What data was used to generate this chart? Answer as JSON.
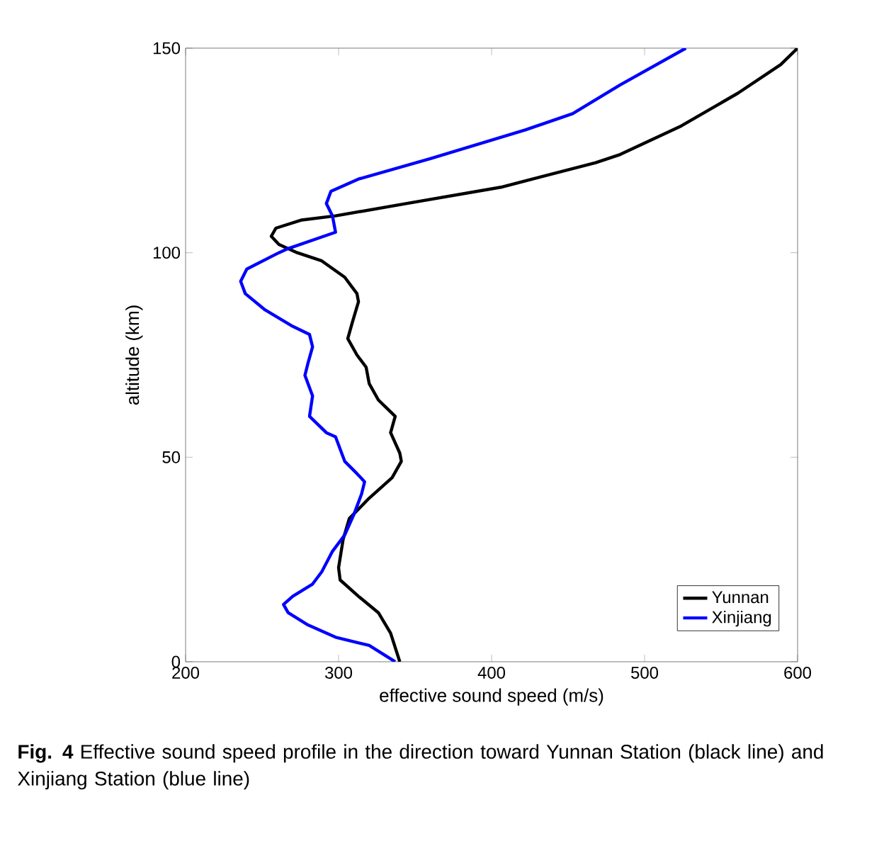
{
  "chart_data": {
    "type": "line",
    "xlabel": "effective sound speed (m/s)",
    "ylabel": "altitude (km)",
    "xlim": [
      200,
      600
    ],
    "ylim": [
      0,
      150
    ],
    "xticks": [
      200,
      300,
      400,
      500,
      600
    ],
    "yticks": [
      0,
      50,
      100,
      150
    ],
    "grid": false,
    "legend": "bottom right",
    "marker": "none",
    "line_style": "solid",
    "series": [
      {
        "name": "Yunnan",
        "color": "#000000",
        "x": [
          340,
          334,
          326,
          313,
          301,
          300,
          303,
          307,
          320,
          335,
          341,
          340,
          334,
          337,
          326,
          320,
          318,
          312,
          306,
          309,
          313,
          312,
          304,
          289,
          273,
          261,
          256,
          259,
          276,
          298,
          344,
          406,
          468,
          484,
          524,
          561,
          589,
          600
        ],
        "values": [
          0,
          7,
          12,
          16,
          20,
          23,
          30,
          35,
          40,
          45,
          49,
          51,
          56,
          60,
          64,
          68,
          72,
          75,
          79,
          83,
          88,
          90,
          94,
          98,
          100,
          102,
          104,
          106,
          108,
          109,
          112,
          116,
          122,
          124,
          131,
          139,
          146,
          150
        ]
      },
      {
        "name": "Xinjiang",
        "color": "#0000ff",
        "x": [
          337,
          320,
          298,
          280,
          267,
          264,
          270,
          283,
          289,
          296,
          304,
          310,
          315,
          317,
          312,
          304,
          301,
          298,
          292,
          281,
          283,
          278,
          280,
          283,
          281,
          270,
          252,
          239,
          236,
          240,
          261,
          267,
          298,
          296,
          292,
          295,
          313,
          360,
          422,
          453,
          484,
          527
        ],
        "values": [
          0,
          4,
          6,
          9,
          12,
          14,
          16,
          19,
          22,
          27,
          31,
          36,
          41,
          44,
          46,
          49,
          52,
          55,
          56,
          60,
          65,
          70,
          73,
          77,
          80,
          82,
          86,
          90,
          93,
          96,
          100,
          101,
          105,
          109,
          112,
          115,
          118,
          123,
          130,
          134,
          141,
          150
        ]
      }
    ],
    "annotations": [
      "**Fig. 4** Effective sound speed profile in the direction toward Yunnan Station (black line) and Xinjiang Station (blue line)"
    ]
  }
}
